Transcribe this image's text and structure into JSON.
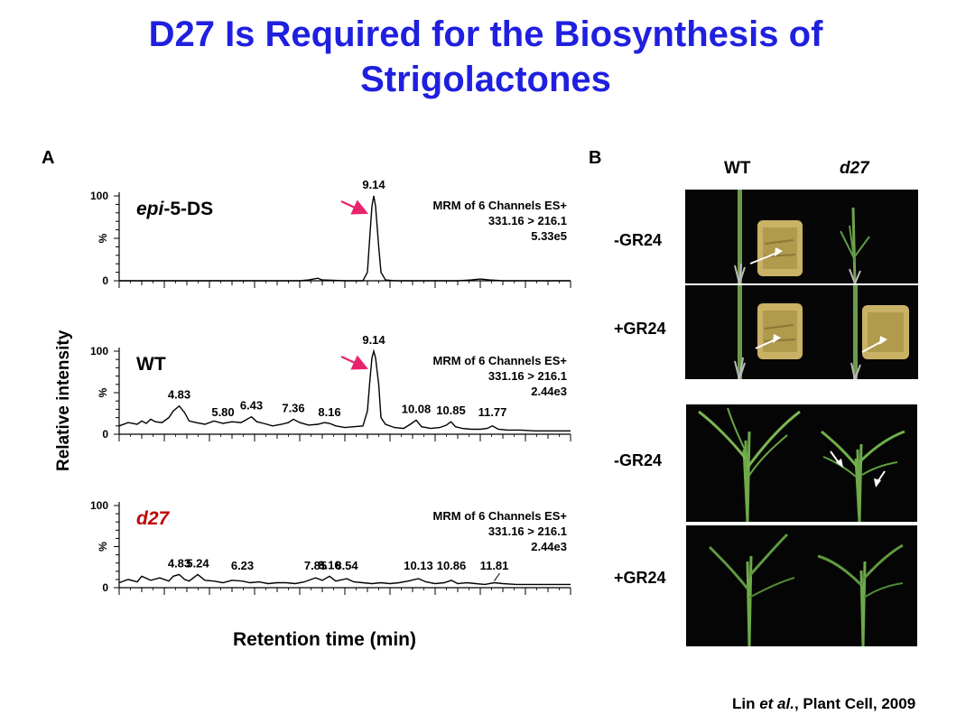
{
  "slide": {
    "title_line1": "D27 Is Required for the Biosynthesis of",
    "title_line2": "Strigolactones",
    "citation_author": "Lin ",
    "citation_etal": "et al.",
    "citation_rest": ", Plant Cell, 2009"
  },
  "panelA": {
    "letter": "A",
    "ylabel": "Relative intensity",
    "xlabel": "Retention time (min)"
  },
  "panelB": {
    "letter": "B",
    "col_wt": "WT",
    "col_d27": "d27",
    "row1": "-GR24",
    "row2": "+GR24",
    "row3": "-GR24",
    "row4": "+GR24"
  },
  "colors": {
    "title": "#1f1fe0",
    "arrow": "#e8236e",
    "d27_label": "#c00000"
  },
  "chart_data": [
    {
      "type": "line",
      "name_prefix": "epi",
      "name_suffix": "-5-DS",
      "ylabel": "%",
      "ytick_labels": [
        "100",
        "0"
      ],
      "mrm_line1": "MRM of 6 Channels ES+",
      "mrm_line2": "331.16 > 216.1",
      "mrm_line3": "5.33e5",
      "x": [
        3.5,
        4.0,
        4.5,
        5.0,
        5.5,
        6.0,
        6.5,
        7.0,
        7.5,
        7.7,
        7.9,
        8.0,
        8.5,
        8.9,
        9.0,
        9.05,
        9.1,
        9.14,
        9.18,
        9.25,
        9.3,
        9.4,
        9.6,
        10.0,
        10.5,
        11.0,
        11.3,
        11.5,
        11.7,
        12.0,
        12.5,
        13.0,
        13.5
      ],
      "y": [
        0,
        0,
        0,
        0,
        0,
        0,
        0,
        0,
        0,
        1,
        3,
        1,
        0,
        0,
        10,
        50,
        88,
        100,
        88,
        40,
        10,
        1,
        0,
        0,
        0,
        0,
        1,
        2,
        1,
        0,
        0,
        0,
        0
      ],
      "peaks": [
        {
          "t": 9.14,
          "label": "9.14",
          "arrow": true
        }
      ]
    },
    {
      "type": "line",
      "name": "WT",
      "ylabel": "%",
      "ytick_labels": [
        "100",
        "0"
      ],
      "mrm_line1": "MRM of 6 Channels ES+",
      "mrm_line2": "331.16 > 216.1",
      "mrm_line3": "2.44e3",
      "x": [
        3.5,
        3.7,
        3.9,
        4.0,
        4.1,
        4.2,
        4.3,
        4.45,
        4.6,
        4.7,
        4.83,
        4.95,
        5.05,
        5.2,
        5.4,
        5.6,
        5.8,
        6.0,
        6.2,
        6.3,
        6.43,
        6.55,
        6.7,
        6.9,
        7.1,
        7.25,
        7.36,
        7.5,
        7.7,
        7.9,
        8.05,
        8.16,
        8.3,
        8.5,
        8.7,
        8.9,
        9.0,
        9.05,
        9.1,
        9.14,
        9.18,
        9.25,
        9.3,
        9.4,
        9.6,
        9.8,
        9.95,
        10.08,
        10.2,
        10.4,
        10.6,
        10.75,
        10.85,
        10.95,
        11.1,
        11.3,
        11.5,
        11.65,
        11.77,
        11.9,
        12.1,
        12.4,
        12.7,
        13.0,
        13.3,
        13.5
      ],
      "y": [
        10,
        14,
        12,
        16,
        13,
        18,
        15,
        14,
        20,
        28,
        34,
        26,
        16,
        14,
        12,
        16,
        13,
        15,
        14,
        17,
        21,
        15,
        13,
        10,
        12,
        14,
        18,
        14,
        11,
        12,
        14,
        13,
        10,
        8,
        9,
        10,
        28,
        62,
        92,
        100,
        92,
        60,
        20,
        12,
        8,
        7,
        12,
        17,
        9,
        7,
        8,
        11,
        15,
        9,
        7,
        6,
        6,
        7,
        10,
        6,
        5,
        5,
        4,
        4,
        4,
        4
      ],
      "peaks": [
        {
          "t": 4.83,
          "label": "4.83"
        },
        {
          "t": 5.8,
          "label": "5.80"
        },
        {
          "t": 6.43,
          "label": "6.43"
        },
        {
          "t": 7.36,
          "label": "7.36"
        },
        {
          "t": 8.16,
          "label": "8.16"
        },
        {
          "t": 9.14,
          "label": "9.14",
          "arrow": true
        },
        {
          "t": 10.08,
          "label": "10.08"
        },
        {
          "t": 10.85,
          "label": "10.85"
        },
        {
          "t": 11.77,
          "label": "11.77"
        }
      ]
    },
    {
      "type": "line",
      "name": "d27",
      "ylabel": "%",
      "ytick_labels": [
        "100",
        "0"
      ],
      "mrm_line1": "MRM of 6 Channels ES+",
      "mrm_line2": "331.16 > 216.1",
      "mrm_line3": "2.44e3",
      "x": [
        3.5,
        3.7,
        3.9,
        4.0,
        4.2,
        4.4,
        4.6,
        4.7,
        4.83,
        4.95,
        5.05,
        5.24,
        5.4,
        5.6,
        5.8,
        6.0,
        6.23,
        6.4,
        6.6,
        6.8,
        7.0,
        7.2,
        7.4,
        7.6,
        7.85,
        8.0,
        8.16,
        8.3,
        8.54,
        8.7,
        8.9,
        9.1,
        9.3,
        9.5,
        9.7,
        9.9,
        10.13,
        10.3,
        10.5,
        10.7,
        10.86,
        11.0,
        11.2,
        11.4,
        11.6,
        11.81,
        12.0,
        12.3,
        12.6,
        13.0,
        13.3,
        13.5
      ],
      "y": [
        6,
        10,
        7,
        14,
        9,
        12,
        8,
        14,
        16,
        10,
        8,
        16,
        9,
        8,
        6,
        9,
        8,
        6,
        7,
        5,
        6,
        6,
        5,
        7,
        12,
        9,
        14,
        8,
        11,
        7,
        6,
        5,
        6,
        5,
        6,
        8,
        11,
        7,
        5,
        6,
        9,
        5,
        6,
        5,
        4,
        6,
        5,
        4,
        4,
        4,
        4,
        4
      ],
      "peaks": [
        {
          "t": 4.83,
          "label": "4.83"
        },
        {
          "t": 5.24,
          "label": "5.24"
        },
        {
          "t": 6.23,
          "label": "6.23"
        },
        {
          "t": 7.85,
          "label": "7.85"
        },
        {
          "t": 8.16,
          "label": "8.16"
        },
        {
          "t": 8.54,
          "label": "8.54"
        },
        {
          "t": 10.13,
          "label": "10.13"
        },
        {
          "t": 10.86,
          "label": "10.86"
        },
        {
          "t": 11.81,
          "label": "11.81"
        }
      ]
    }
  ]
}
